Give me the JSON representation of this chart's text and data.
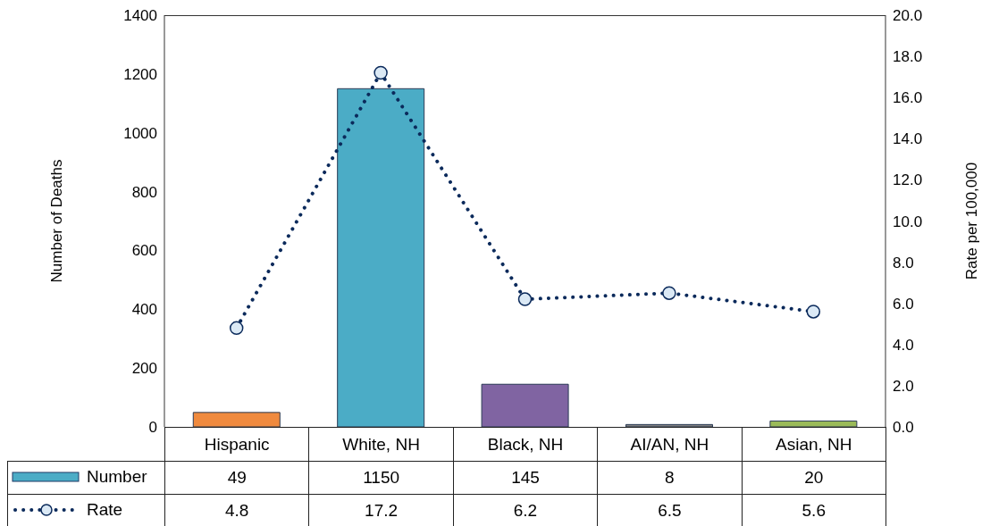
{
  "chart_data": {
    "type": "bar",
    "categories": [
      "Hispanic",
      "White, NH",
      "Black, NH",
      "AI/AN, NH",
      "Asian, NH"
    ],
    "series": [
      {
        "name": "Number",
        "colors": [
          "#f08a3e",
          "#4bacc6",
          "#8064a2",
          "#7f7f7f",
          "#9bbb59"
        ],
        "color": "#4bacc6",
        "values": [
          49,
          1150,
          145,
          8,
          20
        ]
      },
      {
        "name": "Rate",
        "type": "line",
        "axis": "y2",
        "color": "#0b2a5b",
        "values": [
          4.8,
          17.2,
          6.2,
          6.5,
          5.6
        ]
      }
    ],
    "ylabel": "Number of Deaths",
    "y2label": "Rate per 100,000",
    "ylim": [
      0,
      1400
    ],
    "yticks": [
      0,
      200,
      400,
      600,
      800,
      1000,
      1200,
      1400
    ],
    "y2lim": [
      0,
      20
    ],
    "y2ticks": [
      {
        "value": 0,
        "label": "0.0"
      },
      {
        "value": 2,
        "label": "2.0"
      },
      {
        "value": 4,
        "label": "4.0"
      },
      {
        "value": 6,
        "label": "6.0"
      },
      {
        "value": 8,
        "label": "8.0"
      },
      {
        "value": 10,
        "label": "10.0"
      },
      {
        "value": 12,
        "label": "12.0"
      },
      {
        "value": 14,
        "label": "14.0"
      },
      {
        "value": 16,
        "label": "16.0"
      },
      {
        "value": 18,
        "label": "18.0"
      },
      {
        "value": 20,
        "label": "20.0"
      }
    ],
    "marker": "circle",
    "line_style": "dotted",
    "data_labels": true,
    "legend": "bottom"
  }
}
